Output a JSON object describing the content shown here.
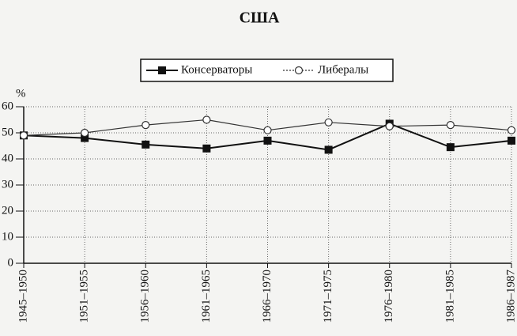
{
  "chart_data": {
    "type": "line",
    "title": "США",
    "y_label": "%",
    "categories": [
      "1945–1950",
      "1951–1955",
      "1956–1960",
      "1961–1965",
      "1966–1970",
      "1971–1975",
      "1976–1980",
      "1981–1985",
      "1986–1987"
    ],
    "series": [
      {
        "name": "Консерваторы",
        "color": "#111111",
        "marker": "square",
        "values": [
          49,
          48,
          45.5,
          44,
          47,
          43.5,
          53.5,
          44.5,
          47
        ]
      },
      {
        "name": "Либералы",
        "color": "#333333",
        "marker": "circle",
        "values": [
          49,
          50,
          53,
          55,
          51,
          54,
          52.5,
          53,
          51
        ]
      }
    ],
    "ylim": [
      0,
      60
    ],
    "yticks": [
      0,
      10,
      20,
      30,
      40,
      50,
      60
    ],
    "grid": true
  }
}
